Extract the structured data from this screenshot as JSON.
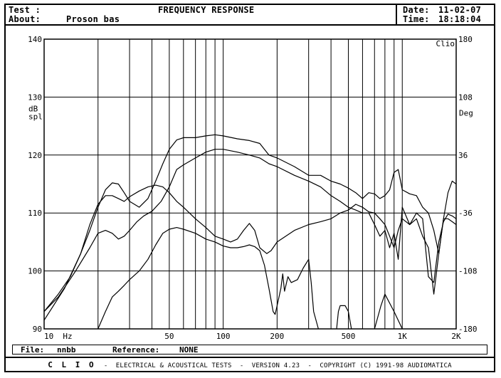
{
  "header": {
    "test_label": "Test :",
    "test_value": "",
    "title": "FREQUENCY RESPONSE",
    "about_label": "About:",
    "about_value": "Proson bas",
    "date_label": "Date:",
    "date_value": "11-02-07",
    "time_label": "Time:",
    "time_value": "18:18:04"
  },
  "footer": {
    "file_label": "File:",
    "file_value": "nnbb",
    "reference_label": "Reference:",
    "reference_value": "NONE",
    "clio": "C L I O",
    "sep1": "-",
    "tests": "ELECTRICAL & ACOUSTICAL TESTS",
    "sep2": "-",
    "version": "VERSION 4.23",
    "sep3": "-",
    "copyright": "COPYRIGHT (C) 1991-98 AUDIOMATICA"
  },
  "chart_data": {
    "type": "line",
    "x_scale": "log",
    "xlim": [
      10,
      2000
    ],
    "ylim": [
      90,
      140
    ],
    "y2lim": [
      -180,
      180
    ],
    "grid": true,
    "x_tick_labels": [
      {
        "x": 10,
        "label": "10"
      },
      {
        "x": 50,
        "label": "50"
      },
      {
        "x": 100,
        "label": "100"
      },
      {
        "x": 200,
        "label": "200"
      },
      {
        "x": 500,
        "label": "500"
      },
      {
        "x": 1000,
        "label": "1K"
      },
      {
        "x": 2000,
        "label": "2K"
      }
    ],
    "x_unit": "Hz",
    "y_ticks": [
      90,
      100,
      110,
      120,
      130,
      140
    ],
    "y_label_line1": "dB",
    "y_label_line2": "spl",
    "y2_ticks": [
      -180,
      -108,
      -36,
      36,
      108,
      180
    ],
    "y2_label": "Deg",
    "corner_label": "Clio",
    "series": [
      {
        "values": [
          [
            10,
            91.5
          ],
          [
            13,
            97
          ],
          [
            16,
            103
          ],
          [
            18,
            107
          ],
          [
            20,
            111
          ],
          [
            22,
            114
          ],
          [
            24,
            115.2
          ],
          [
            26,
            115
          ],
          [
            28,
            113.5
          ],
          [
            30,
            112
          ],
          [
            34,
            111
          ],
          [
            38,
            112.5
          ],
          [
            42,
            115.5
          ],
          [
            46,
            118.5
          ],
          [
            50,
            121
          ],
          [
            55,
            122.6
          ],
          [
            60,
            123
          ],
          [
            70,
            123
          ],
          [
            80,
            123.3
          ],
          [
            90,
            123.5
          ],
          [
            100,
            123.3
          ],
          [
            120,
            122.8
          ],
          [
            140,
            122.5
          ],
          [
            160,
            122
          ],
          [
            180,
            120
          ],
          [
            200,
            119.5
          ],
          [
            250,
            118
          ],
          [
            300,
            116.5
          ],
          [
            350,
            116.5
          ],
          [
            400,
            115.5
          ],
          [
            450,
            115
          ],
          [
            500,
            114.3
          ],
          [
            550,
            113.5
          ],
          [
            600,
            112.5
          ],
          [
            650,
            113.5
          ],
          [
            700,
            113.3
          ],
          [
            750,
            112.5
          ],
          [
            800,
            113
          ],
          [
            850,
            114
          ],
          [
            900,
            117
          ],
          [
            950,
            117.5
          ],
          [
            1000,
            114
          ],
          [
            1100,
            113.3
          ],
          [
            1200,
            113
          ],
          [
            1300,
            111
          ],
          [
            1400,
            110
          ],
          [
            1500,
            107
          ],
          [
            1600,
            103
          ],
          [
            1700,
            109
          ],
          [
            1800,
            113.5
          ],
          [
            1900,
            115.5
          ],
          [
            2000,
            115
          ]
        ]
      },
      {
        "values": [
          [
            10,
            93
          ],
          [
            12,
            95.5
          ],
          [
            15,
            100
          ],
          [
            18,
            104
          ],
          [
            20,
            106.5
          ],
          [
            22,
            107
          ],
          [
            24,
            106.5
          ],
          [
            26,
            105.5
          ],
          [
            28,
            106
          ],
          [
            30,
            107
          ],
          [
            33,
            108.5
          ],
          [
            36,
            109.5
          ],
          [
            40,
            110.3
          ],
          [
            45,
            112
          ],
          [
            50,
            114.5
          ],
          [
            55,
            117.5
          ],
          [
            60,
            118.3
          ],
          [
            70,
            119.5
          ],
          [
            80,
            120.5
          ],
          [
            90,
            121
          ],
          [
            100,
            121
          ],
          [
            120,
            120.5
          ],
          [
            140,
            120
          ],
          [
            160,
            119.5
          ],
          [
            180,
            118.5
          ],
          [
            200,
            118
          ],
          [
            250,
            116.5
          ],
          [
            300,
            115.5
          ],
          [
            350,
            114.5
          ],
          [
            400,
            113
          ],
          [
            450,
            112
          ],
          [
            500,
            111
          ],
          [
            550,
            110.5
          ],
          [
            600,
            110
          ],
          [
            650,
            110
          ],
          [
            700,
            108
          ],
          [
            750,
            106
          ],
          [
            800,
            107
          ],
          [
            850,
            104
          ],
          [
            900,
            106.5
          ],
          [
            950,
            102
          ],
          [
            1000,
            111
          ],
          [
            1100,
            108
          ],
          [
            1200,
            109
          ],
          [
            1300,
            106
          ],
          [
            1400,
            104
          ],
          [
            1500,
            96
          ],
          [
            1600,
            103
          ],
          [
            1700,
            109
          ],
          [
            1800,
            109
          ],
          [
            1900,
            108.5
          ],
          [
            2000,
            108
          ]
        ]
      },
      {
        "values": [
          [
            10,
            93
          ],
          [
            12,
            96
          ],
          [
            14,
            99
          ],
          [
            16,
            103
          ],
          [
            18,
            108
          ],
          [
            20,
            111.5
          ],
          [
            22,
            113
          ],
          [
            24,
            113
          ],
          [
            26,
            112.5
          ],
          [
            28,
            112
          ],
          [
            30,
            112.8
          ],
          [
            34,
            113.8
          ],
          [
            38,
            114.5
          ],
          [
            42,
            114.8
          ],
          [
            46,
            114.5
          ],
          [
            50,
            113.5
          ],
          [
            55,
            112
          ],
          [
            60,
            111
          ],
          [
            70,
            109
          ],
          [
            80,
            107.5
          ],
          [
            90,
            106
          ],
          [
            100,
            105.5
          ],
          [
            110,
            105
          ],
          [
            120,
            105.5
          ],
          [
            130,
            107
          ],
          [
            140,
            108.2
          ],
          [
            150,
            107
          ],
          [
            160,
            104
          ],
          [
            175,
            103
          ],
          [
            185,
            103.5
          ],
          [
            200,
            105
          ],
          [
            250,
            107
          ],
          [
            300,
            108
          ],
          [
            350,
            108.5
          ],
          [
            400,
            109
          ],
          [
            450,
            110
          ],
          [
            500,
            110.5
          ],
          [
            550,
            111.5
          ],
          [
            600,
            111
          ],
          [
            650,
            110.2
          ],
          [
            700,
            110
          ],
          [
            750,
            109
          ],
          [
            800,
            108
          ],
          [
            850,
            106
          ],
          [
            900,
            104
          ],
          [
            950,
            107
          ],
          [
            1000,
            109
          ],
          [
            1100,
            108
          ],
          [
            1200,
            110
          ],
          [
            1300,
            109
          ],
          [
            1400,
            99
          ],
          [
            1500,
            98
          ],
          [
            1600,
            105
          ],
          [
            1700,
            108.5
          ],
          [
            1800,
            109.8
          ],
          [
            1900,
            109.5
          ],
          [
            2000,
            109
          ]
        ]
      },
      {
        "values": [
          [
            20,
            90
          ],
          [
            22,
            93
          ],
          [
            24,
            95.5
          ],
          [
            26,
            96.5
          ],
          [
            28,
            97.5
          ],
          [
            30,
            98.5
          ],
          [
            34,
            100
          ],
          [
            38,
            102
          ],
          [
            42,
            104.5
          ],
          [
            46,
            106.5
          ],
          [
            50,
            107.2
          ],
          [
            55,
            107.5
          ],
          [
            60,
            107.2
          ],
          [
            70,
            106.5
          ],
          [
            80,
            105.5
          ],
          [
            90,
            105
          ],
          [
            100,
            104.3
          ],
          [
            110,
            104
          ],
          [
            120,
            104
          ],
          [
            130,
            104.2
          ],
          [
            140,
            104.5
          ],
          [
            150,
            104.2
          ],
          [
            160,
            103.5
          ],
          [
            170,
            101
          ],
          [
            180,
            97
          ],
          [
            190,
            93
          ],
          [
            195,
            92.5
          ],
          [
            200,
            94
          ],
          [
            210,
            97
          ],
          [
            215,
            99.5
          ],
          [
            220,
            96.5
          ],
          [
            230,
            99
          ],
          [
            240,
            98
          ],
          [
            260,
            98.5
          ],
          [
            280,
            100.5
          ],
          [
            300,
            102
          ],
          [
            310,
            98
          ],
          [
            320,
            93
          ],
          [
            340,
            90
          ]
        ]
      },
      {
        "values": [
          [
            430,
            90
          ],
          [
            440,
            93
          ],
          [
            450,
            94
          ],
          [
            480,
            94
          ],
          [
            500,
            93
          ],
          [
            520,
            90
          ]
        ]
      },
      {
        "values": [
          [
            700,
            90
          ],
          [
            760,
            94
          ],
          [
            800,
            96
          ],
          [
            900,
            93
          ],
          [
            1000,
            90
          ]
        ]
      }
    ]
  }
}
